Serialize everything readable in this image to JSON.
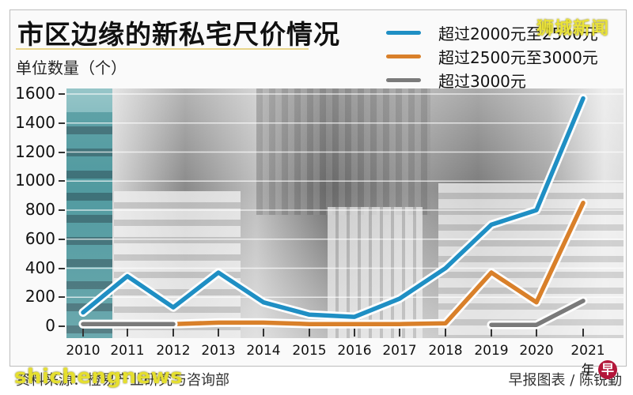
{
  "header": {
    "title": "市区边缘的新私宅尺价情况",
    "y_axis_label": "单位数量（个）",
    "watermark": "狮城新闻"
  },
  "legend": [
    {
      "label": "超过2000元至2500元",
      "color": "#1f8fc4"
    },
    {
      "label": "超过2500元至3000元",
      "color": "#d9802a"
    },
    {
      "label": "超过3000元",
      "color": "#7a7a7a"
    }
  ],
  "footer": {
    "source": "资料来源：橙易产业研究与咨询部",
    "credit": "早报图表 / 陈锐勤",
    "watermark": "shichengnews",
    "logo_glyph": "早"
  },
  "chart_data": {
    "type": "line",
    "title": "市区边缘的新私宅尺价情况",
    "xlabel": "年",
    "ylabel": "单位数量（个）",
    "ylim": [
      0,
      1600
    ],
    "yticks": [
      0,
      200,
      400,
      600,
      800,
      1000,
      1200,
      1400,
      1600
    ],
    "x": [
      "2010",
      "2011",
      "2012",
      "2013",
      "2014",
      "2015",
      "2016",
      "2017",
      "2018",
      "2019",
      "2020",
      "2021年"
    ],
    "grid": true,
    "legend_position": "top-right",
    "series": [
      {
        "name": "超过2000元至2500元",
        "color": "#1f8fc4",
        "values": [
          95,
          345,
          130,
          370,
          165,
          80,
          65,
          190,
          400,
          700,
          800,
          1570
        ]
      },
      {
        "name": "超过2500元至3000元",
        "color": "#d9802a",
        "values": [
          15,
          15,
          15,
          25,
          25,
          15,
          15,
          15,
          20,
          370,
          165,
          850
        ]
      },
      {
        "name": "超过3000元",
        "color": "#7a7a7a",
        "values": [
          15,
          15,
          15,
          null,
          null,
          null,
          null,
          null,
          null,
          10,
          10,
          175
        ]
      }
    ]
  }
}
